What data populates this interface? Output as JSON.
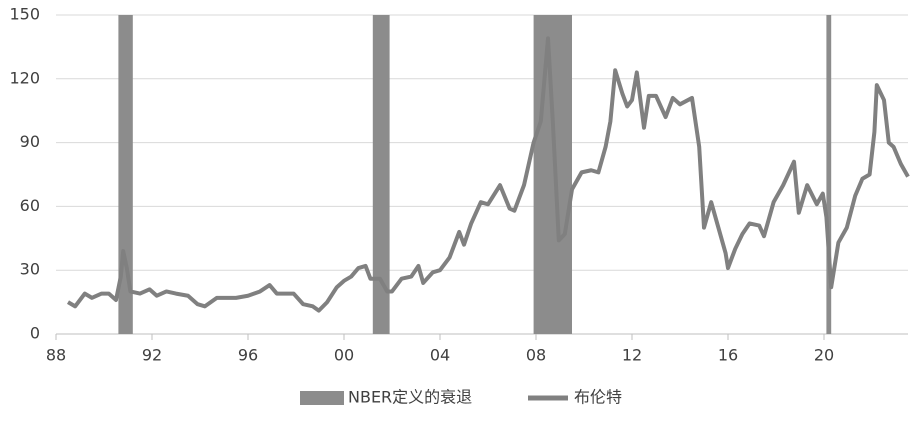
{
  "chart_data": {
    "type": "line",
    "x": [
      1988.5,
      1988.8,
      1989.0,
      1989.2,
      1989.5,
      1989.9,
      1990.2,
      1990.5,
      1990.7,
      1990.8,
      1990.95,
      1991.1,
      1991.5,
      1991.9,
      1992.2,
      1992.6,
      1993.0,
      1993.5,
      1993.9,
      1994.2,
      1994.7,
      1995.0,
      1995.5,
      1996.0,
      1996.5,
      1996.9,
      1997.2,
      1997.6,
      1997.9,
      1998.3,
      1998.7,
      1998.95,
      1999.3,
      1999.7,
      2000.0,
      2000.3,
      2000.6,
      2000.9,
      2001.1,
      2001.5,
      2001.8,
      2002.0,
      2002.4,
      2002.8,
      2003.1,
      2003.3,
      2003.7,
      2004.0,
      2004.4,
      2004.8,
      2005.0,
      2005.3,
      2005.7,
      2006.0,
      2006.5,
      2006.9,
      2007.1,
      2007.5,
      2007.9,
      2008.2,
      2008.5,
      2008.7,
      2008.95,
      2009.2,
      2009.5,
      2009.9,
      2010.3,
      2010.6,
      2010.9,
      2011.1,
      2011.3,
      2011.6,
      2011.8,
      2012.0,
      2012.2,
      2012.5,
      2012.7,
      2013.0,
      2013.4,
      2013.7,
      2014.0,
      2014.5,
      2014.8,
      2015.0,
      2015.3,
      2015.6,
      2015.9,
      2016.0,
      2016.3,
      2016.6,
      2016.9,
      2017.3,
      2017.5,
      2017.9,
      2018.3,
      2018.75,
      2018.95,
      2019.3,
      2019.7,
      2019.95,
      2020.1,
      2020.3,
      2020.6,
      2020.95,
      2021.3,
      2021.6,
      2021.9,
      2022.1,
      2022.2,
      2022.5,
      2022.7,
      2022.9,
      2023.2,
      2023.5
    ],
    "series": [
      {
        "name": "布伦特",
        "color": "#808080",
        "values": [
          15,
          13,
          16,
          19,
          17,
          19,
          19,
          16,
          27,
          39,
          31,
          20,
          19,
          21,
          18,
          20,
          19,
          18,
          14,
          13,
          17,
          17,
          17,
          18,
          20,
          23,
          19,
          19,
          19,
          14,
          13,
          11,
          15,
          22,
          25,
          27,
          31,
          32,
          26,
          26,
          20,
          20,
          26,
          27,
          32,
          24,
          29,
          30,
          36,
          48,
          42,
          52,
          62,
          61,
          70,
          59,
          58,
          70,
          90,
          100,
          139,
          100,
          44,
          47,
          68,
          76,
          77,
          76,
          88,
          100,
          124,
          113,
          107,
          110,
          123,
          97,
          112,
          112,
          102,
          111,
          108,
          111,
          88,
          50,
          62,
          50,
          38,
          31,
          40,
          47,
          52,
          51,
          46,
          62,
          70,
          81,
          57,
          70,
          61,
          66,
          55,
          22,
          43,
          50,
          65,
          73,
          75,
          95,
          117,
          110,
          90,
          88,
          80,
          74
        ]
      }
    ],
    "recessions": {
      "name": "NBER定义的衰退",
      "color": "#8c8c8c",
      "spans": [
        [
          1990.6,
          1991.2
        ],
        [
          2001.2,
          2001.9
        ],
        [
          2007.9,
          2009.5
        ],
        [
          2020.1,
          2020.3
        ]
      ]
    },
    "xlim": [
      1988,
      2023.5
    ],
    "xticks": [
      {
        "value": 1988,
        "label": "88"
      },
      {
        "value": 1992,
        "label": "92"
      },
      {
        "value": 1996,
        "label": "96"
      },
      {
        "value": 2000,
        "label": "00"
      },
      {
        "value": 2004,
        "label": "04"
      },
      {
        "value": 2008,
        "label": "08"
      },
      {
        "value": 2012,
        "label": "12"
      },
      {
        "value": 2016,
        "label": "16"
      },
      {
        "value": 2020,
        "label": "20"
      }
    ],
    "ylim": [
      0,
      150
    ],
    "yticks": [
      0,
      30,
      60,
      90,
      120,
      150
    ],
    "grid": true,
    "legend": "bottom"
  }
}
